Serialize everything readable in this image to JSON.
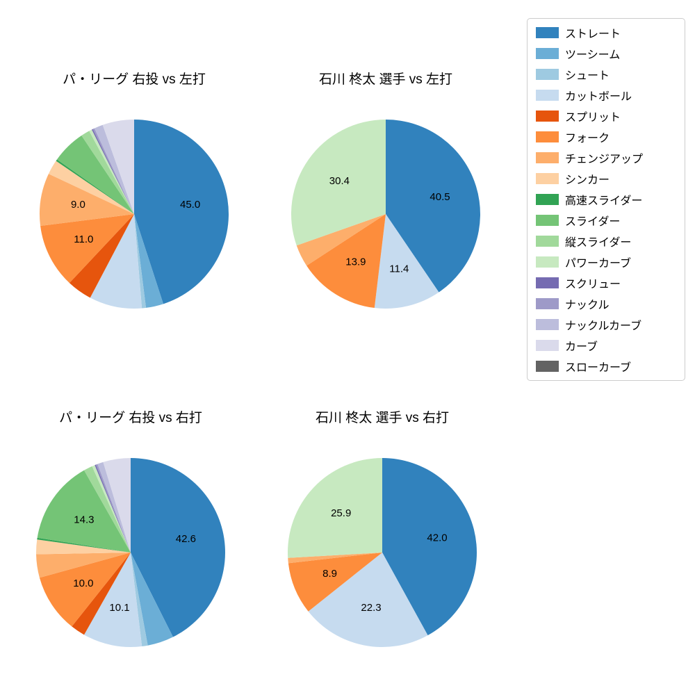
{
  "chart_data": {
    "type": "pie",
    "start_angle": "top",
    "direction": "clockwise",
    "label_distance": 0.6,
    "charts": [
      {
        "title": "パ・リーグ 右投 vs 左打",
        "slices": [
          {
            "name": "ストレート",
            "value": 45.0,
            "label": "45.0"
          },
          {
            "name": "ツーシーム",
            "value": 3.0,
            "label": null
          },
          {
            "name": "シュート",
            "value": 0.7,
            "label": null
          },
          {
            "name": "カットボール",
            "value": 9.0,
            "label": null
          },
          {
            "name": "スプリット",
            "value": 4.3,
            "label": null
          },
          {
            "name": "フォーク",
            "value": 11.0,
            "label": "11.0"
          },
          {
            "name": "チェンジアップ",
            "value": 9.0,
            "label": "9.0"
          },
          {
            "name": "シンカー",
            "value": 2.5,
            "label": null
          },
          {
            "name": "高速スライダー",
            "value": 0.3,
            "label": null
          },
          {
            "name": "スライダー",
            "value": 5.8,
            "label": null
          },
          {
            "name": "縦スライダー",
            "value": 1.5,
            "label": null
          },
          {
            "name": "パワーカーブ",
            "value": 0.5,
            "label": null
          },
          {
            "name": "スクリュー",
            "value": 0.2,
            "label": null
          },
          {
            "name": "ナックル",
            "value": 0.3,
            "label": null
          },
          {
            "name": "ナックルカーブ",
            "value": 1.5,
            "label": null
          },
          {
            "name": "カーブ",
            "value": 5.4,
            "label": null
          }
        ]
      },
      {
        "title": "石川 柊太 選手 vs 左打",
        "slices": [
          {
            "name": "ストレート",
            "value": 40.5,
            "label": "40.5"
          },
          {
            "name": "カットボール",
            "value": 11.4,
            "label": "11.4"
          },
          {
            "name": "フォーク",
            "value": 13.9,
            "label": "13.9"
          },
          {
            "name": "チェンジアップ",
            "value": 3.8,
            "label": null
          },
          {
            "name": "パワーカーブ",
            "value": 30.4,
            "label": "30.4"
          }
        ]
      },
      {
        "title": "パ・リーグ 右投 vs 右打",
        "slices": [
          {
            "name": "ストレート",
            "value": 42.6,
            "label": "42.6"
          },
          {
            "name": "ツーシーム",
            "value": 4.5,
            "label": null
          },
          {
            "name": "シュート",
            "value": 1.0,
            "label": null
          },
          {
            "name": "カットボール",
            "value": 10.1,
            "label": "10.1"
          },
          {
            "name": "スプリット",
            "value": 2.5,
            "label": null
          },
          {
            "name": "フォーク",
            "value": 10.0,
            "label": "10.0"
          },
          {
            "name": "チェンジアップ",
            "value": 4.0,
            "label": null
          },
          {
            "name": "シンカー",
            "value": 2.5,
            "label": null
          },
          {
            "name": "高速スライダー",
            "value": 0.3,
            "label": null
          },
          {
            "name": "スライダー",
            "value": 14.3,
            "label": "14.3"
          },
          {
            "name": "縦スライダー",
            "value": 1.5,
            "label": null
          },
          {
            "name": "パワーカーブ",
            "value": 0.5,
            "label": null
          },
          {
            "name": "スクリュー",
            "value": 0.2,
            "label": null
          },
          {
            "name": "ナックル",
            "value": 0.3,
            "label": null
          },
          {
            "name": "ナックルカーブ",
            "value": 1.0,
            "label": null
          },
          {
            "name": "カーブ",
            "value": 4.7,
            "label": null
          }
        ]
      },
      {
        "title": "石川 柊太 選手 vs 右打",
        "slices": [
          {
            "name": "ストレート",
            "value": 42.0,
            "label": "42.0"
          },
          {
            "name": "カットボール",
            "value": 22.3,
            "label": "22.3"
          },
          {
            "name": "フォーク",
            "value": 8.9,
            "label": "8.9"
          },
          {
            "name": "チェンジアップ",
            "value": 0.9,
            "label": null
          },
          {
            "name": "パワーカーブ",
            "value": 25.9,
            "label": "25.9"
          }
        ]
      }
    ],
    "legend": {
      "position": "upper right",
      "items": [
        {
          "label": "ストレート",
          "color": "#3182bd"
        },
        {
          "label": "ツーシーム",
          "color": "#6baed6"
        },
        {
          "label": "シュート",
          "color": "#9ecae1"
        },
        {
          "label": "カットボール",
          "color": "#c6dbef"
        },
        {
          "label": "スプリット",
          "color": "#e6550d"
        },
        {
          "label": "フォーク",
          "color": "#fd8d3c"
        },
        {
          "label": "チェンジアップ",
          "color": "#fdae6b"
        },
        {
          "label": "シンカー",
          "color": "#fdd0a2"
        },
        {
          "label": "高速スライダー",
          "color": "#31a354"
        },
        {
          "label": "スライダー",
          "color": "#74c476"
        },
        {
          "label": "縦スライダー",
          "color": "#a1d99b"
        },
        {
          "label": "パワーカーブ",
          "color": "#c7e9c0"
        },
        {
          "label": "スクリュー",
          "color": "#756bb1"
        },
        {
          "label": "ナックル",
          "color": "#9e9ac8"
        },
        {
          "label": "ナックルカーブ",
          "color": "#bcbddc"
        },
        {
          "label": "カーブ",
          "color": "#dadaeb"
        },
        {
          "label": "スローカーブ",
          "color": "#636363"
        }
      ]
    }
  }
}
